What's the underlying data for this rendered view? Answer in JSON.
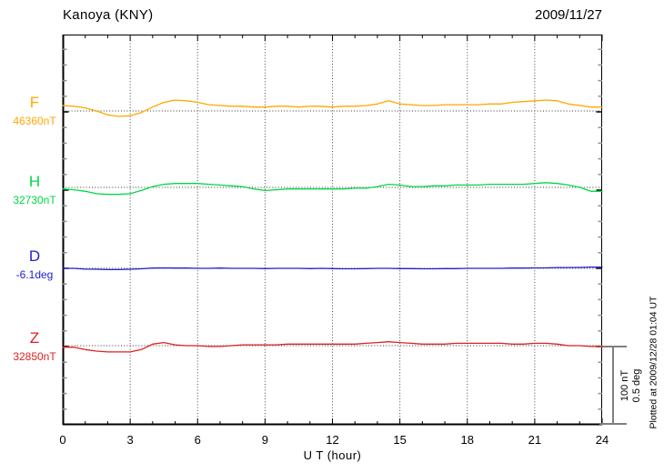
{
  "header": {
    "title": "Kanoya (KNY)",
    "date": "2009/11/27"
  },
  "axis": {
    "xlabel": "U T (hour)",
    "xticks": [
      0,
      3,
      6,
      9,
      12,
      15,
      18,
      21,
      24
    ]
  },
  "scalebar": {
    "line1": "100 nT",
    "line2": "0.5 deg"
  },
  "footer": {
    "plotted_at": "Plotted at 2009/12/28 01:04 UT"
  },
  "chart_data": {
    "type": "line",
    "title": "Kanoya (KNY) magnetogram 2009/11/27",
    "xlabel": "U T (hour)",
    "xlim": [
      0,
      24
    ],
    "xticks": [
      0,
      3,
      6,
      9,
      12,
      15,
      18,
      21,
      24
    ],
    "grid": "vertical dotted every 3 hours, dotted baseline per trace",
    "scale": {
      "nT_per_div": 100,
      "deg_per_div": 0.5
    },
    "x_hours": [
      0,
      0.5,
      1,
      1.5,
      2,
      2.5,
      3,
      3.5,
      4,
      4.5,
      5,
      5.5,
      6,
      6.5,
      7,
      7.5,
      8,
      8.5,
      9,
      9.5,
      10,
      10.5,
      11,
      11.5,
      12,
      12.5,
      13,
      13.5,
      14,
      14.5,
      15,
      15.5,
      16,
      16.5,
      17,
      17.5,
      18,
      18.5,
      19,
      19.5,
      20,
      20.5,
      21,
      21.5,
      22,
      22.5,
      23,
      23.5,
      24
    ],
    "series": [
      {
        "name": "F",
        "baseline": "46360nT",
        "unit": "nT",
        "color": "#FFA800",
        "offsets": [
          7,
          6,
          4,
          0,
          -5,
          -7,
          -6,
          -2,
          5,
          11,
          14,
          13,
          11,
          8,
          7,
          6,
          6,
          5,
          5,
          6,
          6,
          5,
          6,
          6,
          5,
          6,
          6,
          7,
          9,
          13,
          9,
          8,
          7,
          7,
          8,
          8,
          8,
          8,
          9,
          9,
          11,
          12,
          13,
          14,
          13,
          9,
          7,
          5,
          5
        ]
      },
      {
        "name": "H",
        "baseline": "32730nT",
        "unit": "nT",
        "color": "#00D848",
        "offsets": [
          -2,
          -3,
          -5,
          -8,
          -9,
          -9,
          -8,
          -4,
          1,
          4,
          5,
          5,
          5,
          4,
          3,
          2,
          1,
          -2,
          -4,
          -3,
          -2,
          -2,
          -2,
          -2,
          -2,
          -2,
          -1,
          -1,
          1,
          4,
          3,
          1,
          1,
          2,
          2,
          3,
          3,
          3,
          4,
          4,
          4,
          4,
          5,
          6,
          5,
          3,
          0,
          -5,
          -5
        ]
      },
      {
        "name": "D",
        "baseline": "-6.1deg",
        "unit": "deg",
        "color": "#2222CC",
        "offsets": [
          0,
          0,
          -0.005,
          -0.006,
          -0.008,
          -0.008,
          -0.006,
          -0.003,
          0.002,
          0.003,
          0.002,
          0.002,
          0,
          0,
          0.002,
          0,
          0,
          0,
          -0.002,
          0,
          0,
          0,
          -0.002,
          0,
          -0.002,
          -0.003,
          -0.003,
          -0.002,
          0,
          0,
          -0.002,
          -0.002,
          -0.003,
          -0.003,
          -0.002,
          -0.002,
          0,
          0,
          0,
          0,
          0.002,
          0.002,
          0.003,
          0.003,
          0.005,
          0.005,
          0.006,
          0.008,
          0.008
        ]
      },
      {
        "name": "Z",
        "baseline": "32850nT",
        "unit": "nT",
        "color": "#DD2222",
        "offsets": [
          -2,
          -2,
          -5,
          -7,
          -8,
          -8,
          -8,
          -5,
          2,
          4,
          1,
          0,
          0,
          -1,
          -1,
          0,
          1,
          1,
          1,
          1,
          2,
          2,
          2,
          2,
          2,
          2,
          2,
          3,
          4,
          5,
          4,
          3,
          2,
          2,
          2,
          3,
          3,
          3,
          3,
          3,
          2,
          2,
          3,
          3,
          2,
          0,
          0,
          -1,
          -1
        ]
      }
    ]
  }
}
